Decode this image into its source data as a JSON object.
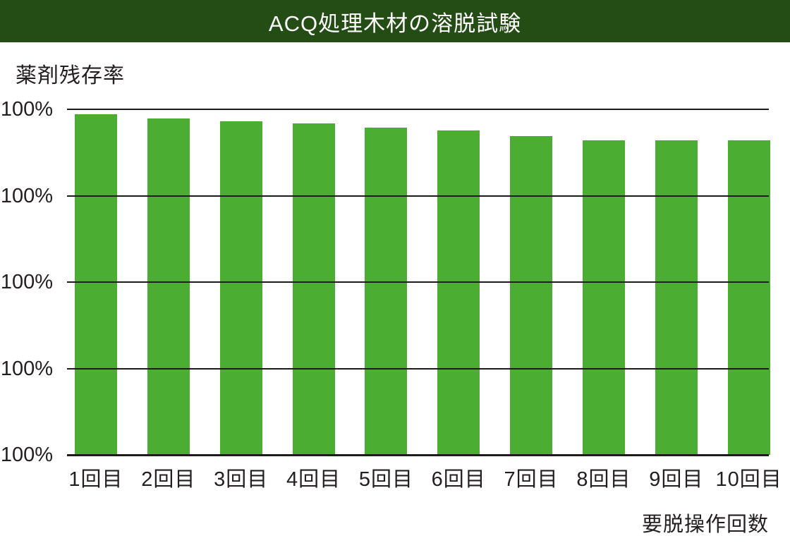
{
  "header": {
    "title": "ACQ処理木材の溶脱試験"
  },
  "chart_data": {
    "type": "bar",
    "title": "ACQ処理木材の溶脱試験",
    "ylabel": "薬剤残存率",
    "xlabel": "要脱操作回数",
    "categories": [
      "1回目",
      "2回目",
      "3回目",
      "4回目",
      "5回目",
      "6回目",
      "7回目",
      "8回目",
      "9回目",
      "10回目"
    ],
    "y_tick_labels": [
      "100%",
      "100%",
      "100%",
      "100%",
      "100%"
    ],
    "series": [
      {
        "name": "薬剤残存率",
        "values_pct_of_axis": [
          98.5,
          97.3,
          96.6,
          95.9,
          94.7,
          93.8,
          92.3,
          91.0,
          91.0,
          91.0
        ]
      }
    ],
    "legend": "none",
    "grid": "horizontal lines drawn over bars",
    "bar_color": "#4cad33"
  },
  "colors": {
    "header_bg": "#244c15",
    "header_text": "#ffffff",
    "bar": "#4cad33",
    "gridline": "#1d1c1a",
    "text": "#231f20",
    "background": "#ffffff"
  }
}
